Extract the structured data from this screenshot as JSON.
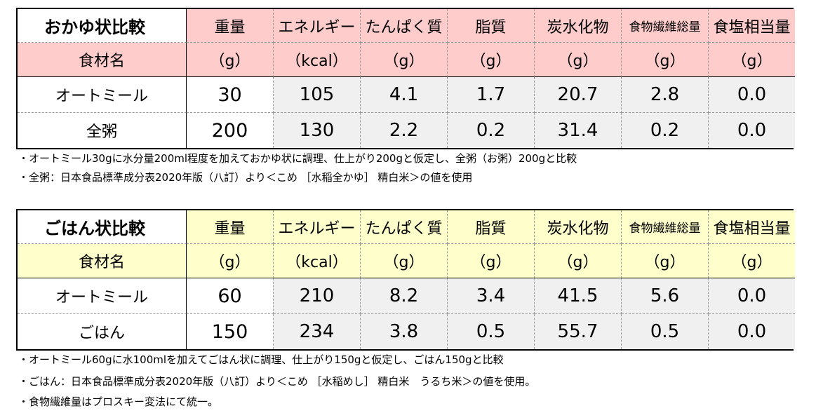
{
  "headers": {
    "nutrients": [
      "重量",
      "エネルギー",
      "たんぱく質",
      "脂質",
      "炭水化物",
      "食物繊維総量",
      "食塩相当量"
    ],
    "name_label": "食材名",
    "units": [
      "（g）",
      "（kcal）",
      "（g）",
      "（g）",
      "（g）",
      "（g）",
      "（g）"
    ]
  },
  "colors": {
    "okayu_header": "#ffcccc",
    "gohan_header": "#ffffcc",
    "data_cell_gray": "#f0f0f0"
  },
  "table_okayu": {
    "title": "おかゆ状比較",
    "rows": [
      {
        "name": "オートミール",
        "values": [
          "30",
          "105",
          "4.1",
          "1.7",
          "20.7",
          "2.8",
          "0.0"
        ]
      },
      {
        "name": "全粥",
        "values": [
          "200",
          "130",
          "2.2",
          "0.2",
          "31.4",
          "0.2",
          "0.0"
        ]
      }
    ],
    "notes": [
      "・オートミール30gに水分量200ml程度を加えておかゆ状に調理、仕上がり200gと仮定し、全粥（お粥）200gと比較",
      "・全粥：日本食品標準成分表2020年版（八訂）より＜こめ ［水稲全かゆ］ 精白米＞の値を使用"
    ]
  },
  "table_gohan": {
    "title": "ごはん状比較",
    "rows": [
      {
        "name": "オートミール",
        "values": [
          "60",
          "210",
          "8.2",
          "3.4",
          "41.5",
          "5.6",
          "0.0"
        ]
      },
      {
        "name": "ごはん",
        "values": [
          "150",
          "234",
          "3.8",
          "0.5",
          "55.7",
          "0.5",
          "0.0"
        ]
      }
    ],
    "notes": [
      "・オートミール60gに水100mlを加えてごはん状に調理、仕上がり150gと仮定し、ごはん150gと比較",
      "・ごはん：日本食品標準成分表2020年版（八訂）より＜こめ ［水稲めし］ 精白米　うるち米＞の値を使用。",
      "・食物繊維量はプロスキー変法にて統一。"
    ]
  }
}
